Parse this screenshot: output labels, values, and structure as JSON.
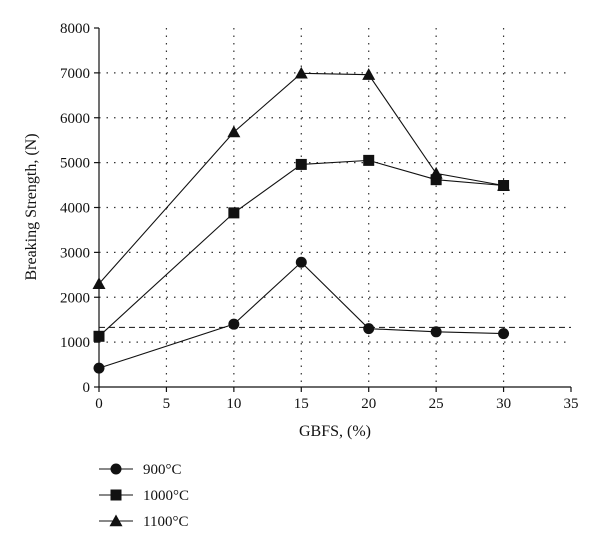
{
  "chart_data": {
    "type": "line",
    "title": "",
    "xlabel": "GBFS, (%)",
    "ylabel": "Breaking Strength, (N)",
    "xlim": [
      0,
      35
    ],
    "ylim": [
      0,
      8000
    ],
    "xticks": [
      0,
      5,
      10,
      15,
      20,
      25,
      30,
      35
    ],
    "yticks": [
      0,
      1000,
      2000,
      3000,
      4000,
      5000,
      6000,
      7000,
      8000
    ],
    "grid": "dotted, both axes",
    "legend": "below plot, left",
    "reference_line": {
      "y": 1330,
      "style": "dashed"
    },
    "series": [
      {
        "name": "900°C",
        "marker": "circle",
        "x": [
          0,
          10,
          15,
          20,
          25,
          30
        ],
        "y": [
          420,
          1400,
          2780,
          1300,
          1230,
          1190
        ]
      },
      {
        "name": "1000°C",
        "marker": "square",
        "x": [
          0,
          10,
          15,
          20,
          25,
          30
        ],
        "y": [
          1130,
          3880,
          4960,
          5050,
          4620,
          4490
        ]
      },
      {
        "name": "1100°C",
        "marker": "triangle",
        "x": [
          0,
          10,
          15,
          20,
          25,
          30
        ],
        "y": [
          2300,
          5680,
          6990,
          6960,
          4760,
          4490
        ]
      }
    ]
  }
}
